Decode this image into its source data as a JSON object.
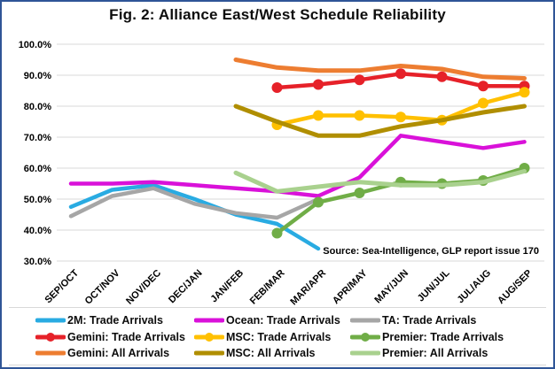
{
  "title": "Fig. 2: Alliance East/West Schedule Reliability",
  "chart_data": {
    "type": "line",
    "title": "Fig. 2: Alliance East/West Schedule Reliability",
    "source": "Source: Sea-Intelligence, GLP report issue 170",
    "xlabel": "",
    "ylabel": "",
    "ylim": [
      30,
      100
    ],
    "grid": "horizontal",
    "gridline_color": "#D9D9D9",
    "legend_position": "bottom",
    "frame_border_color": "#2F5597",
    "yticks": [
      {
        "value": 100,
        "label": "100.0%"
      },
      {
        "value": 90,
        "label": "90.0%"
      },
      {
        "value": 80,
        "label": "80.0%"
      },
      {
        "value": 70,
        "label": "70.0%"
      },
      {
        "value": 60,
        "label": "60.0%"
      },
      {
        "value": 50,
        "label": "50.0%"
      },
      {
        "value": 40,
        "label": "40.0%"
      },
      {
        "value": 30,
        "label": "30.0%"
      }
    ],
    "categories": [
      "SEP/OCT",
      "OCT/NOV",
      "NOV/DEC",
      "DEC/JAN",
      "JAN/FEB",
      "FEB/MAR",
      "MAR/APR",
      "APR/MAY",
      "MAY/JUN",
      "JUN/JUL",
      "JUL/AUG",
      "AUG/SEP"
    ],
    "series": [
      {
        "name": "2M: Trade Arrivals",
        "color": "#29ABE2",
        "marker": "none",
        "width": 4.5,
        "values": [
          47.5,
          53,
          54.5,
          50,
          45,
          42,
          34,
          null,
          null,
          null,
          null,
          null
        ]
      },
      {
        "name": "Ocean: Trade Arrivals",
        "color": "#D911D9",
        "marker": "none",
        "width": 4.5,
        "values": [
          55,
          55,
          55.5,
          54.5,
          53.5,
          52.5,
          51,
          57,
          70.5,
          68.5,
          66.5,
          68.5
        ]
      },
      {
        "name": "TA: Trade Arrivals",
        "color": "#A6A6A6",
        "marker": "none",
        "width": 4.5,
        "values": [
          44.5,
          51,
          53.5,
          48.5,
          45.5,
          44,
          50,
          null,
          null,
          null,
          null,
          null
        ]
      },
      {
        "name": "Gemini: Trade Arrivals",
        "color": "#E62129",
        "marker": "circle",
        "width": 4.5,
        "values": [
          null,
          null,
          null,
          null,
          null,
          86,
          87,
          88.5,
          90.5,
          89.5,
          86.5,
          86.5
        ]
      },
      {
        "name": "MSC: Trade Arrivals",
        "color": "#FFC000",
        "marker": "circle",
        "width": 4.5,
        "values": [
          null,
          null,
          null,
          null,
          null,
          74,
          77,
          77,
          76.5,
          75.5,
          81,
          84.5
        ]
      },
      {
        "name": "Premier: Trade Arrivals",
        "color": "#70AD47",
        "marker": "circle",
        "width": 4.5,
        "values": [
          null,
          null,
          null,
          null,
          null,
          39,
          49,
          52,
          55.5,
          55,
          56,
          60
        ]
      },
      {
        "name": "Gemini: All Arrivals",
        "color": "#ED7D31",
        "marker": "none",
        "width": 5,
        "values": [
          null,
          null,
          null,
          null,
          95,
          92.5,
          91.5,
          91.5,
          93,
          92,
          89.5,
          89
        ]
      },
      {
        "name": "MSC: All Arrivals",
        "color": "#B08E00",
        "marker": "none",
        "width": 5,
        "values": [
          null,
          null,
          null,
          null,
          80,
          75,
          70.5,
          70.5,
          73.5,
          75.5,
          78,
          80
        ]
      },
      {
        "name": "Premier: All Arrivals",
        "color": "#A9D18E",
        "marker": "none",
        "width": 5,
        "values": [
          null,
          null,
          null,
          null,
          58.5,
          52.5,
          54,
          55.5,
          54.5,
          54.5,
          55.5,
          59
        ]
      }
    ]
  }
}
